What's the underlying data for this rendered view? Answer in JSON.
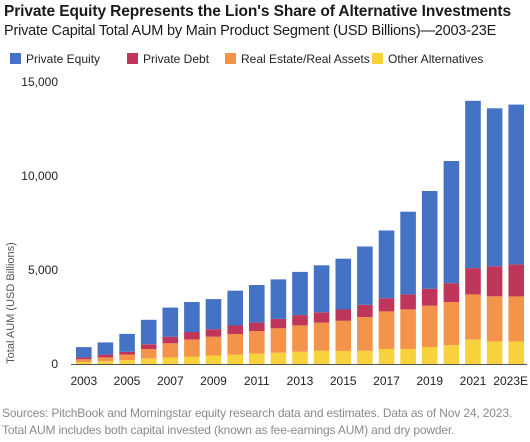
{
  "header": {
    "title": "Private Equity Represents the Lion's Share of Alternative Investments",
    "subtitle": "Private Capital Total AUM by Main Product Segment (USD Billions)—2003-23E"
  },
  "colors": {
    "private_equity": "#4472c4",
    "private_debt": "#c0365a",
    "real_estate": "#f4934a",
    "other": "#f7d23c",
    "text": "#1a1a1a",
    "footer": "#8a8a8a"
  },
  "footer": {
    "line1": "Sources: PitchBook and Morningstar equity research data and estimates. Data as of Nov 24, 2023.",
    "line2": "Total AUM includes both capital invested (known as fee-earnings AUM) and dry powder."
  },
  "chart_data": {
    "type": "bar",
    "stacked": true,
    "ylabel": "Total AUM (USD Billions)",
    "ylim": [
      0,
      15000
    ],
    "yticks": [
      0,
      5000,
      10000,
      15000
    ],
    "ytick_labels": [
      "0",
      "5,000",
      "10,000",
      "15,000"
    ],
    "grid": false,
    "legend_position": "top",
    "categories": [
      "2003",
      "2004",
      "2005",
      "2006",
      "2007",
      "2008",
      "2009",
      "2010",
      "2011",
      "2012",
      "2013",
      "2014",
      "2015",
      "2016",
      "2017",
      "2018",
      "2019",
      "2020",
      "2021",
      "2022",
      "2023E"
    ],
    "xtick_labels": [
      "2003",
      "",
      "2005",
      "",
      "2007",
      "",
      "2009",
      "",
      "2011",
      "",
      "2013",
      "",
      "2015",
      "",
      "2017",
      "",
      "2019",
      "",
      "2021",
      "",
      "2023E"
    ],
    "series": [
      {
        "name": "Other Alternatives",
        "color": "#f7d23c",
        "values": [
          100,
          150,
          200,
          300,
          350,
          400,
          450,
          500,
          550,
          600,
          650,
          700,
          700,
          700,
          800,
          800,
          900,
          1000,
          1300,
          1200,
          1200
        ]
      },
      {
        "name": "Real Estate/Real Assets",
        "color": "#f4934a",
        "values": [
          150,
          200,
          300,
          500,
          750,
          900,
          1000,
          1100,
          1200,
          1300,
          1400,
          1500,
          1600,
          1800,
          2000,
          2100,
          2200,
          2300,
          2400,
          2400,
          2400
        ]
      },
      {
        "name": "Private Debt",
        "color": "#c0365a",
        "values": [
          100,
          150,
          150,
          250,
          350,
          400,
          400,
          450,
          450,
          500,
          550,
          550,
          600,
          650,
          700,
          800,
          900,
          1000,
          1400,
          1600,
          1700
        ]
      },
      {
        "name": "Private Equity",
        "color": "#4472c4",
        "values": [
          550,
          650,
          950,
          1300,
          1550,
          1600,
          1600,
          1850,
          2000,
          2100,
          2300,
          2500,
          2700,
          3100,
          3600,
          4400,
          5200,
          6500,
          8900,
          8400,
          8500
        ]
      }
    ],
    "legend": [
      "Private Equity",
      "Private Debt",
      "Real Estate/Real Assets",
      "Other Alternatives"
    ]
  }
}
